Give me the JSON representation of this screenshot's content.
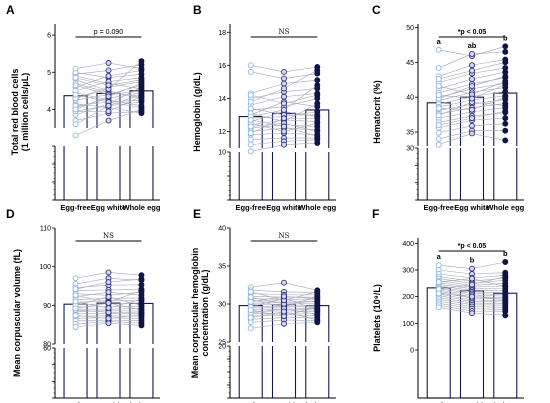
{
  "colors": {
    "egg_free_fill": "#ffffff",
    "egg_free_stroke": "#8fb4e0",
    "egg_white_fill": "#d4d6f2",
    "egg_white_stroke": "#2a2f78",
    "whole_egg_fill": "#0f1444",
    "whole_egg_stroke": "#0f1444",
    "bar_fill": "#ffffff",
    "bar_stroke": "#141a52",
    "line": "#a4a8b8",
    "axis": "#000000"
  },
  "chart_data": [
    {
      "panel": "A",
      "type": "bar",
      "categories": [
        "Egg-free",
        "Egg white",
        "Whole egg"
      ],
      "ylabel_lines": [
        "Total red blood cells",
        "(1 million cells/μL)"
      ],
      "upper_ticks": [
        4,
        5,
        6
      ],
      "lower_ticks": [
        0,
        1,
        2,
        3
      ],
      "break_low": 3,
      "break_high": 3.5,
      "ylim": [
        0,
        6.3
      ],
      "means": [
        4.37,
        4.43,
        4.5
      ],
      "annotation": "p = 0.090",
      "annotation_style": "p",
      "letters": [],
      "subjects": [
        [
          4.95,
          5.05,
          5.2
        ],
        [
          4.9,
          4.7,
          4.55
        ],
        [
          5.0,
          4.85,
          4.95
        ],
        [
          4.3,
          4.6,
          4.75
        ],
        [
          4.05,
          4.3,
          4.45
        ],
        [
          3.95,
          4.1,
          4.2
        ],
        [
          4.8,
          4.5,
          4.3
        ],
        [
          3.85,
          4.15,
          4.6
        ],
        [
          4.15,
          4.05,
          3.9
        ],
        [
          4.6,
          4.9,
          5.05
        ],
        [
          4.45,
          4.25,
          4.1
        ],
        [
          3.3,
          3.7,
          4.0
        ],
        [
          5.1,
          5.25,
          5.1
        ],
        [
          3.7,
          3.9,
          3.95
        ],
        [
          4.25,
          4.4,
          4.65
        ],
        [
          4.7,
          4.45,
          4.35
        ],
        [
          4.5,
          4.75,
          4.85
        ],
        [
          4.1,
          4.2,
          4.25
        ],
        [
          3.95,
          3.95,
          4.35
        ],
        [
          4.3,
          4.55,
          5.3
        ],
        [
          4.65,
          4.4,
          4.5
        ],
        [
          4.0,
          4.35,
          4.7
        ],
        [
          4.4,
          4.2,
          4.05
        ],
        [
          4.85,
          4.65,
          4.8
        ],
        [
          3.6,
          4.1,
          4.4
        ]
      ]
    },
    {
      "panel": "B",
      "type": "bar",
      "categories": [
        "Egg-free",
        "Egg white",
        "Whole egg"
      ],
      "ylabel_lines": [
        "Hemoglobin (g/dL)"
      ],
      "upper_ticks": [
        12,
        14,
        16,
        18
      ],
      "lower_ticks": [
        0,
        5,
        10
      ],
      "break_low": 10,
      "break_high": 11,
      "ylim": [
        0,
        18.5
      ],
      "means": [
        12.9,
        13.1,
        13.3
      ],
      "annotation": "NS",
      "annotation_style": "ns",
      "letters": [],
      "subjects": [
        [
          16.0,
          15.6,
          15.9
        ],
        [
          15.6,
          15.2,
          15.5
        ],
        [
          14.3,
          14.9,
          15.1
        ],
        [
          14.0,
          14.4,
          14.6
        ],
        [
          13.6,
          14.1,
          14.3
        ],
        [
          13.3,
          13.5,
          14.0
        ],
        [
          13.0,
          13.8,
          13.5
        ],
        [
          12.8,
          12.9,
          13.2
        ],
        [
          12.6,
          13.2,
          12.9
        ],
        [
          12.4,
          12.7,
          12.6
        ],
        [
          12.2,
          12.4,
          12.3
        ],
        [
          12.0,
          12.2,
          12.1
        ],
        [
          11.8,
          11.9,
          11.8
        ],
        [
          11.5,
          11.6,
          11.6
        ],
        [
          11.2,
          11.4,
          11.5
        ],
        [
          10.8,
          11.2,
          11.3
        ],
        [
          13.1,
          12.6,
          13.7
        ],
        [
          12.9,
          13.3,
          14.8
        ],
        [
          12.5,
          12.0,
          12.5
        ],
        [
          13.4,
          13.0,
          13.0
        ],
        [
          12.3,
          12.5,
          12.0
        ],
        [
          14.2,
          13.7,
          14.2
        ],
        [
          11.9,
          12.8,
          12.8
        ],
        [
          13.8,
          14.6,
          15.7
        ],
        [
          12.7,
          12.3,
          11.7
        ]
      ]
    },
    {
      "panel": "C",
      "type": "bar",
      "categories": [
        "Egg-free",
        "Egg white",
        "Whole egg"
      ],
      "ylabel_lines": [
        "Hematocrit (%)"
      ],
      "upper_ticks": [
        35,
        40,
        45,
        50
      ],
      "lower_ticks": [
        0,
        10,
        20,
        30
      ],
      "break_low": 30,
      "break_high": 33,
      "ylim": [
        0,
        50.5
      ],
      "means": [
        39.2,
        40.0,
        40.6
      ],
      "annotation": "*p < 0.05",
      "annotation_style": "sig",
      "letters": [
        "a",
        "ab",
        "b"
      ],
      "subjects": [
        [
          46.8,
          45.9,
          47.3
        ],
        [
          44.2,
          46.2,
          46.5
        ],
        [
          43.0,
          44.6,
          45.4
        ],
        [
          42.1,
          43.4,
          44.2
        ],
        [
          41.2,
          42.6,
          43.6
        ],
        [
          40.6,
          41.9,
          42.8
        ],
        [
          40.0,
          41.2,
          42.0
        ],
        [
          39.5,
          40.7,
          41.4
        ],
        [
          39.0,
          40.1,
          40.8
        ],
        [
          38.6,
          39.6,
          40.2
        ],
        [
          38.1,
          39.0,
          39.7
        ],
        [
          37.6,
          38.5,
          39.1
        ],
        [
          37.0,
          37.9,
          38.5
        ],
        [
          36.4,
          37.3,
          37.8
        ],
        [
          35.6,
          36.7,
          37.0
        ],
        [
          34.9,
          35.9,
          36.2
        ],
        [
          34.0,
          35.2,
          35.2
        ],
        [
          33.2,
          34.8,
          33.8
        ],
        [
          41.6,
          40.4,
          42.3
        ],
        [
          39.8,
          41.6,
          43.0
        ],
        [
          38.4,
          38.2,
          40.0
        ],
        [
          37.4,
          39.3,
          38.8
        ],
        [
          36.0,
          37.0,
          38.0
        ],
        [
          42.6,
          43.8,
          45.0
        ],
        [
          40.3,
          39.8,
          41.8
        ]
      ]
    },
    {
      "panel": "D",
      "type": "bar",
      "categories": [
        "Egg-free",
        "Egg white",
        "Whole egg"
      ],
      "ylabel_lines": [
        "Mean corpuscular volume (fL)"
      ],
      "upper_ticks": [
        80,
        90,
        100,
        110
      ],
      "lower_ticks": [
        0,
        20,
        40,
        60
      ],
      "break_low": 60,
      "break_high": 80,
      "ylim": [
        0,
        110
      ],
      "means": [
        90.3,
        90.6,
        90.5
      ],
      "annotation": "NS",
      "annotation_style": "ns",
      "letters": [],
      "subjects": [
        [
          97.0,
          98.5,
          97.8
        ],
        [
          95.5,
          97.0,
          96.5
        ],
        [
          94.6,
          95.2,
          95.3
        ],
        [
          93.8,
          94.0,
          94.2
        ],
        [
          93.0,
          92.6,
          93.4
        ],
        [
          92.2,
          93.4,
          92.6
        ],
        [
          91.5,
          91.8,
          91.9
        ],
        [
          90.8,
          91.2,
          91.2
        ],
        [
          90.2,
          90.4,
          90.5
        ],
        [
          89.6,
          89.6,
          89.8
        ],
        [
          89.0,
          89.0,
          89.2
        ],
        [
          88.4,
          88.6,
          88.5
        ],
        [
          87.8,
          87.9,
          87.9
        ],
        [
          87.2,
          87.3,
          87.2
        ],
        [
          86.6,
          86.8,
          86.6
        ],
        [
          86.0,
          86.2,
          86.0
        ],
        [
          85.2,
          85.8,
          85.4
        ],
        [
          84.4,
          85.4,
          84.8
        ],
        [
          92.6,
          90.8,
          93.8
        ],
        [
          90.0,
          92.2,
          90.0
        ],
        [
          88.8,
          88.2,
          88.0
        ],
        [
          91.0,
          89.3,
          91.6
        ],
        [
          87.4,
          86.6,
          87.6
        ],
        [
          94.2,
          96.0,
          96.8
        ],
        [
          89.2,
          90.6,
          88.8
        ]
      ]
    },
    {
      "panel": "E",
      "type": "bar",
      "categories": [
        "Egg-free",
        "Egg white",
        "Whole egg"
      ],
      "ylabel_lines": [
        "Mean corpuscular hemoglobin",
        "concentration (g/dL)"
      ],
      "upper_ticks": [
        25,
        30,
        35,
        40
      ],
      "lower_ticks": [
        0,
        5,
        10,
        15,
        20
      ],
      "break_low": 20,
      "break_high": 25,
      "ylim": [
        0,
        40
      ],
      "means": [
        29.8,
        29.9,
        29.8
      ],
      "annotation": "NS",
      "annotation_style": "ns",
      "letters": [],
      "subjects": [
        [
          32.2,
          32.8,
          31.8
        ],
        [
          31.8,
          31.6,
          31.5
        ],
        [
          31.4,
          31.2,
          31.2
        ],
        [
          31.0,
          30.9,
          30.9
        ],
        [
          30.7,
          30.6,
          30.6
        ],
        [
          30.4,
          30.4,
          30.3
        ],
        [
          30.1,
          30.2,
          30.0
        ],
        [
          29.9,
          29.9,
          29.8
        ],
        [
          29.7,
          29.7,
          29.6
        ],
        [
          29.5,
          29.5,
          29.4
        ],
        [
          29.3,
          29.3,
          29.2
        ],
        [
          29.0,
          29.1,
          29.0
        ],
        [
          28.7,
          28.8,
          28.8
        ],
        [
          28.4,
          28.6,
          28.5
        ],
        [
          28.0,
          28.2,
          28.2
        ],
        [
          27.6,
          27.9,
          27.8
        ],
        [
          26.8,
          27.4,
          27.6
        ],
        [
          30.6,
          29.6,
          31.0
        ],
        [
          29.6,
          30.8,
          29.2
        ],
        [
          30.9,
          30.0,
          30.4
        ],
        [
          28.8,
          29.4,
          28.6
        ],
        [
          31.6,
          30.5,
          31.6
        ],
        [
          29.2,
          28.4,
          29.7
        ],
        [
          30.3,
          31.0,
          30.7
        ],
        [
          28.2,
          29.0,
          27.9
        ]
      ]
    },
    {
      "panel": "F",
      "type": "bar",
      "categories": [
        "Egg-free",
        "Egg white",
        "Whole egg"
      ],
      "ylabel_lines": [
        "Platelets (10⁹/L)"
      ],
      "upper_ticks": [
        0,
        100,
        200,
        300,
        400
      ],
      "lower_ticks": [],
      "break_low": null,
      "break_high": null,
      "ylim": [
        0,
        420
      ],
      "means": [
        233,
        222,
        213
      ],
      "annotation": "*p < 0.05",
      "annotation_style": "sig",
      "letters": [
        "a",
        "b",
        "b"
      ],
      "subjects": [
        [
          318,
          305,
          330
        ],
        [
          300,
          285,
          290
        ],
        [
          285,
          270,
          280
        ],
        [
          275,
          258,
          270
        ],
        [
          268,
          250,
          262
        ],
        [
          260,
          242,
          250
        ],
        [
          252,
          236,
          240
        ],
        [
          246,
          230,
          232
        ],
        [
          240,
          224,
          222
        ],
        [
          235,
          218,
          215
        ],
        [
          230,
          212,
          208
        ],
        [
          225,
          206,
          202
        ],
        [
          220,
          200,
          196
        ],
        [
          215,
          195,
          190
        ],
        [
          210,
          188,
          185
        ],
        [
          204,
          182,
          180
        ],
        [
          197,
          176,
          174
        ],
        [
          190,
          170,
          168
        ],
        [
          182,
          163,
          160
        ],
        [
          175,
          155,
          152
        ],
        [
          168,
          146,
          145
        ],
        [
          160,
          138,
          130
        ],
        [
          255,
          268,
          238
        ],
        [
          228,
          245,
          275
        ],
        [
          212,
          200,
          190
        ]
      ]
    }
  ]
}
